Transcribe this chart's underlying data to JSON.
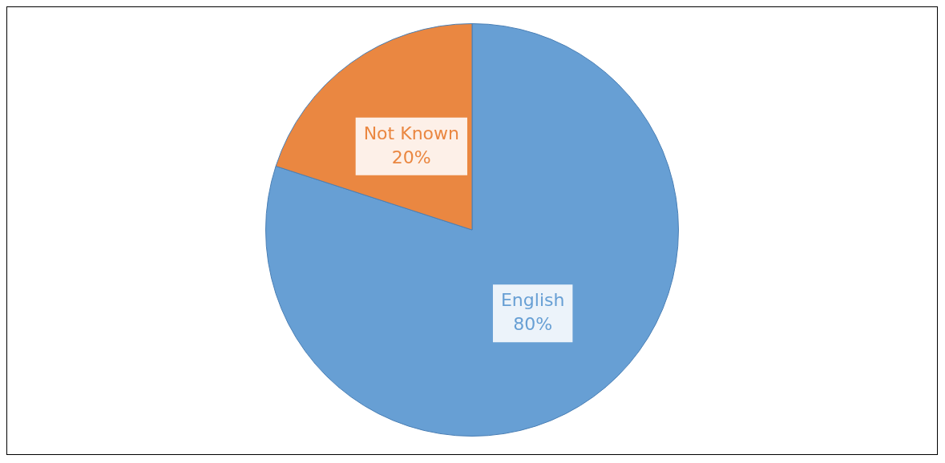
{
  "chart_data": {
    "type": "pie",
    "categories": [
      "English",
      "Not Known"
    ],
    "values": [
      80,
      20
    ],
    "colors": [
      "#679fd4",
      "#ea8741"
    ],
    "value_labels": [
      "80%",
      "20%"
    ],
    "legend": false
  }
}
